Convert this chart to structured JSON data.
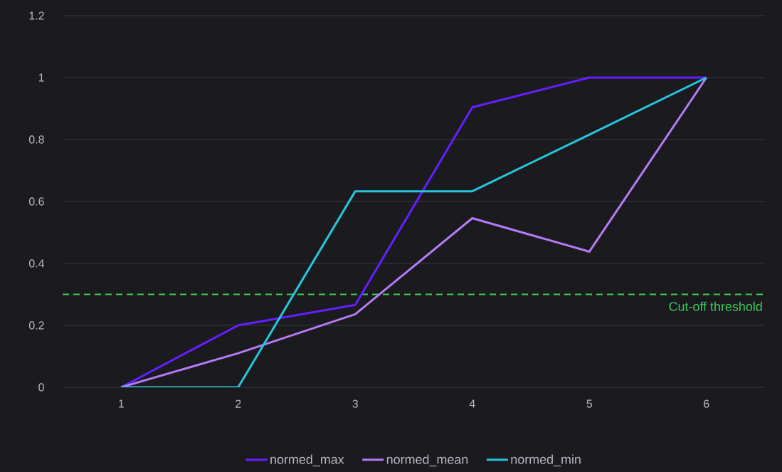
{
  "chart_data": {
    "type": "line",
    "x": [
      1,
      2,
      3,
      4,
      5,
      6
    ],
    "series": [
      {
        "name": "normed_max",
        "color": "#651fff",
        "values": [
          0,
          0.2,
          0.266,
          0.904,
          1,
          1
        ]
      },
      {
        "name": "normed_mean",
        "color": "#b57bf6",
        "values": [
          0,
          0.11,
          0.236,
          0.546,
          0.438,
          1
        ]
      },
      {
        "name": "normed_min",
        "color": "#26c6da",
        "values": [
          0,
          0,
          0.633,
          0.633,
          0.816,
          1
        ]
      }
    ],
    "xlim": [
      0.5,
      6.5
    ],
    "ylim": [
      0,
      1.2
    ],
    "xticks": [
      1,
      2,
      3,
      4,
      5,
      6
    ],
    "yticks": [
      0,
      0.2,
      0.4,
      0.6,
      0.8,
      1,
      1.2
    ],
    "grid": "y",
    "legend": "bottom",
    "ref_lines": [
      {
        "axis": "y",
        "value": 0.3,
        "label": "Cut-off threshold",
        "color": "#3ecf5a",
        "line_style": "dashed"
      }
    ]
  }
}
